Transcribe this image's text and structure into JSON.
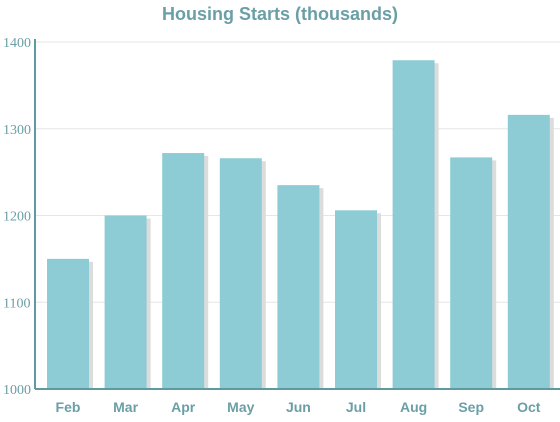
{
  "chart_data": {
    "type": "bar",
    "title": "Housing Starts (thousands)",
    "categories": [
      "Feb",
      "Mar",
      "Apr",
      "May",
      "Jun",
      "Jul",
      "Aug",
      "Sep",
      "Oct"
    ],
    "values": [
      1150,
      1200,
      1272,
      1266,
      1235,
      1206,
      1379,
      1267,
      1316
    ],
    "ylim": [
      1000,
      1400
    ],
    "yticks": [
      1000,
      1100,
      1200,
      1300,
      1400
    ],
    "grid": true,
    "bar_color": "#8eccd5",
    "shadow_color": "#dcdcdc",
    "axis_color": "#5e9aa2",
    "grid_color": "#e6e6e6",
    "text_color": "#6a9fa6"
  }
}
